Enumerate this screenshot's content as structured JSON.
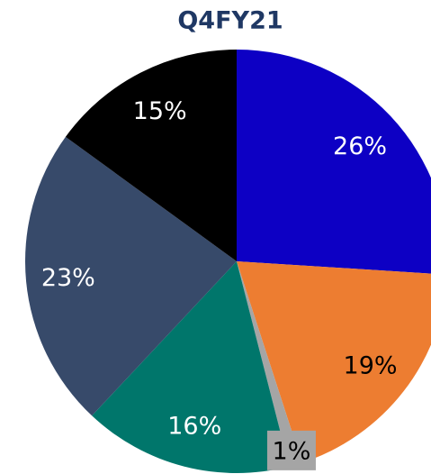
{
  "chart_data": {
    "type": "pie",
    "title": "Q4FY21",
    "values": [
      26,
      19,
      1,
      16,
      23,
      15
    ],
    "value_labels": [
      "26%",
      "19%",
      "1%",
      "16%",
      "23%",
      "15%"
    ],
    "colors": [
      "#0d00c4",
      "#ed7d31",
      "#a5a5a5",
      "#00766b",
      "#374a6a",
      "#000000"
    ],
    "label_colors": [
      "#ffffff",
      "#000000",
      "#000000",
      "#ffffff",
      "#ffffff",
      "#ffffff"
    ]
  }
}
